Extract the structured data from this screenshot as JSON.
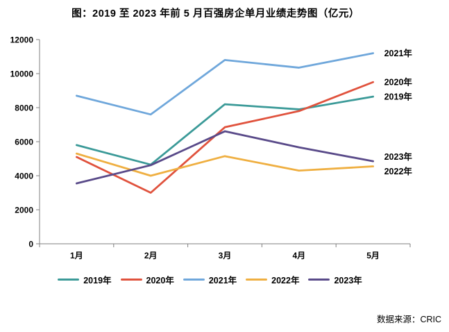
{
  "title": "图：2019 至 2023 年前 5 月百强房企单月业绩走势图（亿元）",
  "source": "数据来源：CRIC",
  "chart_data": {
    "type": "line",
    "title": "图：2019 至 2023 年前 5 月百强房企单月业绩走势图（亿元）",
    "categories": [
      "1月",
      "2月",
      "3月",
      "4月",
      "5月"
    ],
    "series": [
      {
        "name": "2019年",
        "color": "#3B9A98",
        "values": [
          5800,
          4650,
          8200,
          7900,
          8650
        ]
      },
      {
        "name": "2020年",
        "color": "#E0523D",
        "values": [
          5100,
          3000,
          6850,
          7800,
          9500
        ]
      },
      {
        "name": "2021年",
        "color": "#6FA7DB",
        "values": [
          8700,
          7600,
          10800,
          10350,
          11200
        ]
      },
      {
        "name": "2022年",
        "color": "#EFAF41",
        "values": [
          5300,
          4000,
          5150,
          4300,
          4550
        ]
      },
      {
        "name": "2023年",
        "color": "#594A89",
        "values": [
          3550,
          4620,
          6610,
          5670,
          4850
        ]
      }
    ],
    "ylim": [
      0,
      12000
    ],
    "ytick_step": 2000,
    "yticks": [
      "0",
      "2000",
      "4000",
      "6000",
      "8000",
      "10000",
      "12000"
    ],
    "grid": false,
    "legend_position": "bottom",
    "end_labels": [
      "2021年",
      "2020年",
      "2019年",
      "2023年",
      "2022年"
    ],
    "axis_color": "#7F7F7F",
    "label_color": "#000000",
    "unit": "亿元",
    "source": "数据来源：CRIC"
  }
}
